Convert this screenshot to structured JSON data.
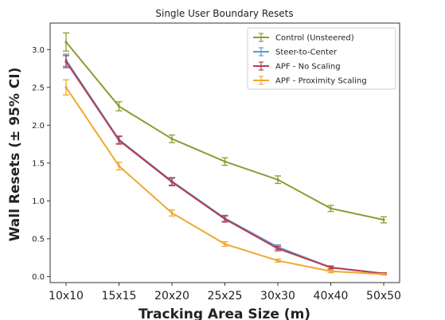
{
  "chart_data": {
    "type": "line",
    "title": "Single User Boundary Resets",
    "xlabel": "Tracking Area Size (m)",
    "ylabel": "Wall Resets (± 95% CI)",
    "categories": [
      "10x10",
      "15x15",
      "20x20",
      "25x25",
      "30x30",
      "40x40",
      "50x50"
    ],
    "ylim": [
      -0.08,
      3.35
    ],
    "yticks": [
      "0.0",
      "0.5",
      "1.0",
      "1.5",
      "2.0",
      "2.5",
      "3.0"
    ],
    "grid": false,
    "legend_position": "top-right",
    "series": [
      {
        "name": "Control (Unsteered)",
        "color": "#8e9a2f",
        "values": [
          3.1,
          2.25,
          1.82,
          1.52,
          1.28,
          0.9,
          0.75
        ],
        "ci": [
          0.12,
          0.06,
          0.05,
          0.05,
          0.05,
          0.04,
          0.04
        ]
      },
      {
        "name": "Steer-to-Center",
        "color": "#5b9bd5",
        "values": [
          2.86,
          1.81,
          1.26,
          0.77,
          0.39,
          0.12,
          0.04
        ],
        "ci": [
          0.08,
          0.05,
          0.05,
          0.04,
          0.03,
          0.02,
          0.01
        ]
      },
      {
        "name": "APF - No Scaling",
        "color": "#b83c4e",
        "values": [
          2.84,
          1.8,
          1.25,
          0.76,
          0.37,
          0.12,
          0.04
        ],
        "ci": [
          0.08,
          0.05,
          0.05,
          0.04,
          0.03,
          0.02,
          0.01
        ]
      },
      {
        "name": "APF - Proximity Scaling",
        "color": "#f0a830",
        "values": [
          2.5,
          1.46,
          0.84,
          0.43,
          0.21,
          0.07,
          0.03
        ],
        "ci": [
          0.1,
          0.05,
          0.04,
          0.03,
          0.02,
          0.02,
          0.01
        ]
      }
    ]
  }
}
